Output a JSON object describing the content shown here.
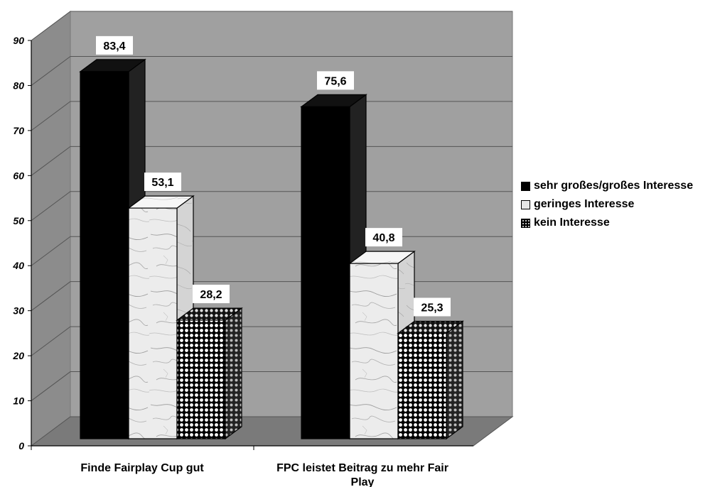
{
  "chart_data": {
    "type": "bar",
    "categories": [
      "Finde Fairplay Cup gut",
      "FPC leistet Beitrag zu mehr Fair Play"
    ],
    "series": [
      {
        "name": "sehr großes/großes Interesse",
        "values": [
          83.4,
          75.6
        ],
        "labels": [
          "83,4",
          "75,6"
        ],
        "color": "#000000"
      },
      {
        "name": "geringes Interesse",
        "values": [
          53.1,
          40.8
        ],
        "labels": [
          "53,1",
          "40,8"
        ],
        "color": "#e8e8e8"
      },
      {
        "name": "kein Interesse",
        "values": [
          28.2,
          25.3
        ],
        "labels": [
          "28,2",
          "25,3"
        ],
        "color": "#000000"
      }
    ],
    "yticks": [
      "0",
      "10",
      "20",
      "30",
      "40",
      "50",
      "60",
      "70",
      "80",
      "90"
    ],
    "ylim": [
      0,
      90
    ],
    "grid": true,
    "style": "3d",
    "legend_position": "right"
  }
}
